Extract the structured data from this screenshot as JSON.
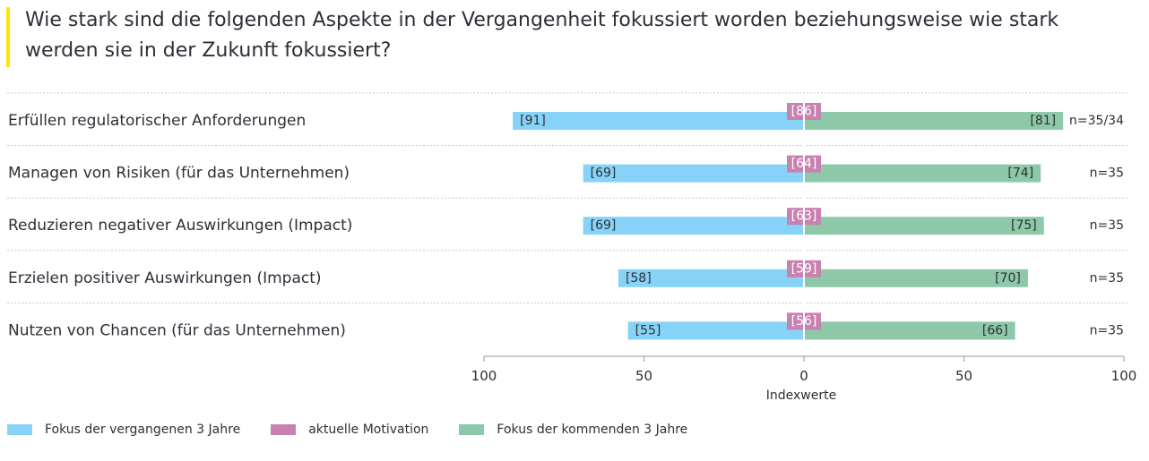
{
  "title": "Wie stark sind die folgenden Aspekte in der Vergangenheit fokussiert worden beziehungsweise wie stark werden sie in der Zukunft fokussiert?",
  "colors": {
    "accent": "#ffe600",
    "past": "#87d3f7",
    "current": "#c981b2",
    "future": "#8dc8a8",
    "text": "#2e2e38"
  },
  "legend": {
    "past": "Fokus der vergangenen 3 Jahre",
    "current": "aktuelle Motivation",
    "future": "Fokus der kommenden 3 Jahre"
  },
  "chart_data": {
    "type": "bar",
    "orientation": "horizontal-diverging",
    "xlabel": "Indexwerte",
    "xlim": [
      -100,
      100
    ],
    "ticks": [
      {
        "value": -100,
        "label": "100"
      },
      {
        "value": -50,
        "label": "50"
      },
      {
        "value": 0,
        "label": "0"
      },
      {
        "value": 50,
        "label": "50"
      },
      {
        "value": 100,
        "label": "100"
      }
    ],
    "categories": [
      "Erfüllen regulatorischer Anforderungen",
      "Managen von Risiken (für das Unternehmen)",
      "Reduzieren negativer Auswirkungen (Impact)",
      "Erzielen positiver Auswirkungen (Impact)",
      "Nutzen von Chancen (für das Unternehmen)"
    ],
    "series": [
      {
        "name": "Fokus der vergangenen 3 Jahre",
        "values": [
          91,
          69,
          69,
          58,
          55
        ]
      },
      {
        "name": "aktuelle Motivation",
        "values": [
          86,
          64,
          63,
          59,
          56
        ]
      },
      {
        "name": "Fokus der kommenden 3 Jahre",
        "values": [
          81,
          74,
          75,
          70,
          66
        ]
      }
    ],
    "n_labels": [
      "n=35/34",
      "n=35",
      "n=35",
      "n=35",
      "n=35"
    ],
    "grid": false,
    "legend_position": "bottom-left"
  }
}
